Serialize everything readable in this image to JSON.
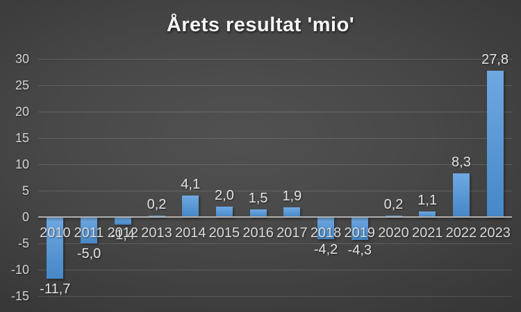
{
  "chart_data": {
    "type": "bar",
    "title": "Årets resultat 'mio'",
    "categories": [
      "2010",
      "2011",
      "2012",
      "2013",
      "2014",
      "2015",
      "2016",
      "2017",
      "2018",
      "2019",
      "2020",
      "2021",
      "2022",
      "2023"
    ],
    "values": [
      -11.7,
      -5.0,
      -1.4,
      0.2,
      4.1,
      2.0,
      1.5,
      1.9,
      -4.2,
      -4.3,
      0.2,
      1.1,
      8.3,
      27.8
    ],
    "labels": [
      "-11,7",
      "-5,0",
      "-1,4",
      "0,2",
      "4,1",
      "2,0",
      "1,5",
      "1,9",
      "-4,2",
      "-4,3",
      "0,2",
      "1,1",
      "8,3",
      "27,8"
    ],
    "xlabel": "",
    "ylabel": "",
    "ylim": [
      -15,
      30
    ],
    "ytick_step": 5,
    "ytick_labels": [
      "30",
      "25",
      "20",
      "15",
      "10",
      "5",
      "0",
      "-5",
      "-10",
      "-15"
    ],
    "grid": true,
    "legend": "none",
    "colors": {
      "bar": "#5b9bd5",
      "bar_gradient_top": "#6fa8e1",
      "bar_gradient_bottom": "#4687c7",
      "axis_zero_line": "#b0b0b0",
      "tick_text": "#d9d9d9",
      "data_label_text": "#e4e4e4",
      "title_text": "#f5f5f5",
      "background_center": "#4e4e4e",
      "background_edge": "#262626"
    }
  }
}
